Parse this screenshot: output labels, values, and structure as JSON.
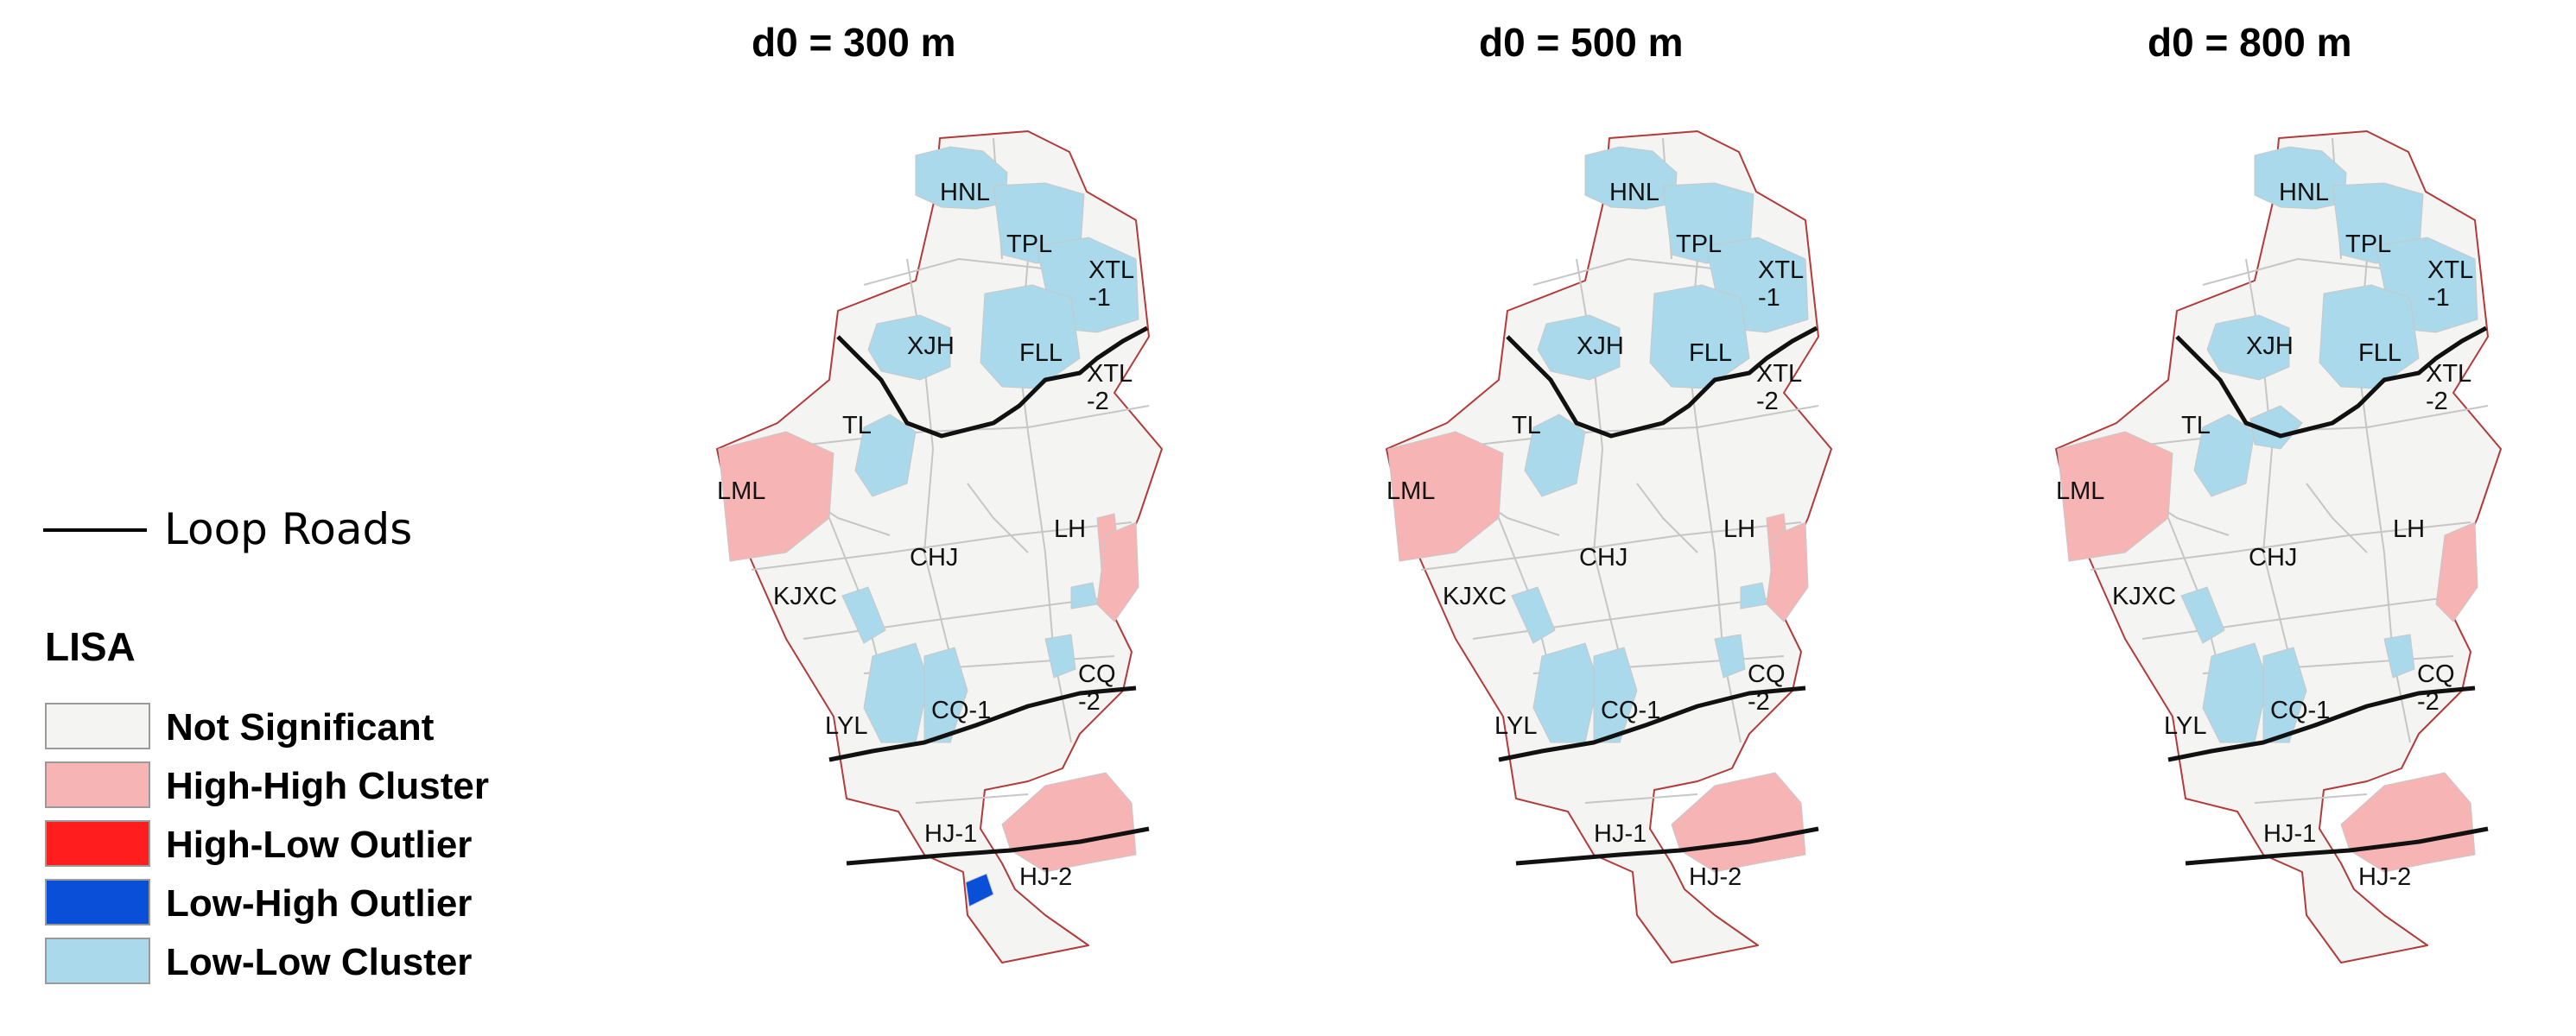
{
  "panels": [
    {
      "title": "d0 = 300 m"
    },
    {
      "title": "d0 = 500 m"
    },
    {
      "title": "d0 = 800 m"
    }
  ],
  "legend": {
    "road_label": "Loop Roads",
    "lisa_title": "LISA",
    "items": [
      {
        "label": "Not Significant",
        "color": "#f4f4f2"
      },
      {
        "label": "High-High Cluster",
        "color": "#f7b4b4"
      },
      {
        "label": "High-Low Outlier",
        "color": "#ff1d1d"
      },
      {
        "label": "Low-High Outlier",
        "color": "#0a4fd8"
      },
      {
        "label": "Low-Low Cluster",
        "color": "#a9d9eb"
      }
    ]
  },
  "districts": [
    "HNL",
    "TPL",
    "XTL\n-1",
    "XJH",
    "FLL",
    "XTL\n-2",
    "TL",
    "LML",
    "CHJ",
    "LH",
    "KJXC",
    "CQ\n-2",
    "CQ-1",
    "LYL",
    "HJ-1",
    "HJ-2"
  ],
  "district_lines": {
    "XTL-1": [
      "XTL",
      "-1"
    ],
    "XTL-2": [
      "XTL",
      "-2"
    ],
    "CQ-2": [
      "CQ",
      "-2"
    ]
  }
}
